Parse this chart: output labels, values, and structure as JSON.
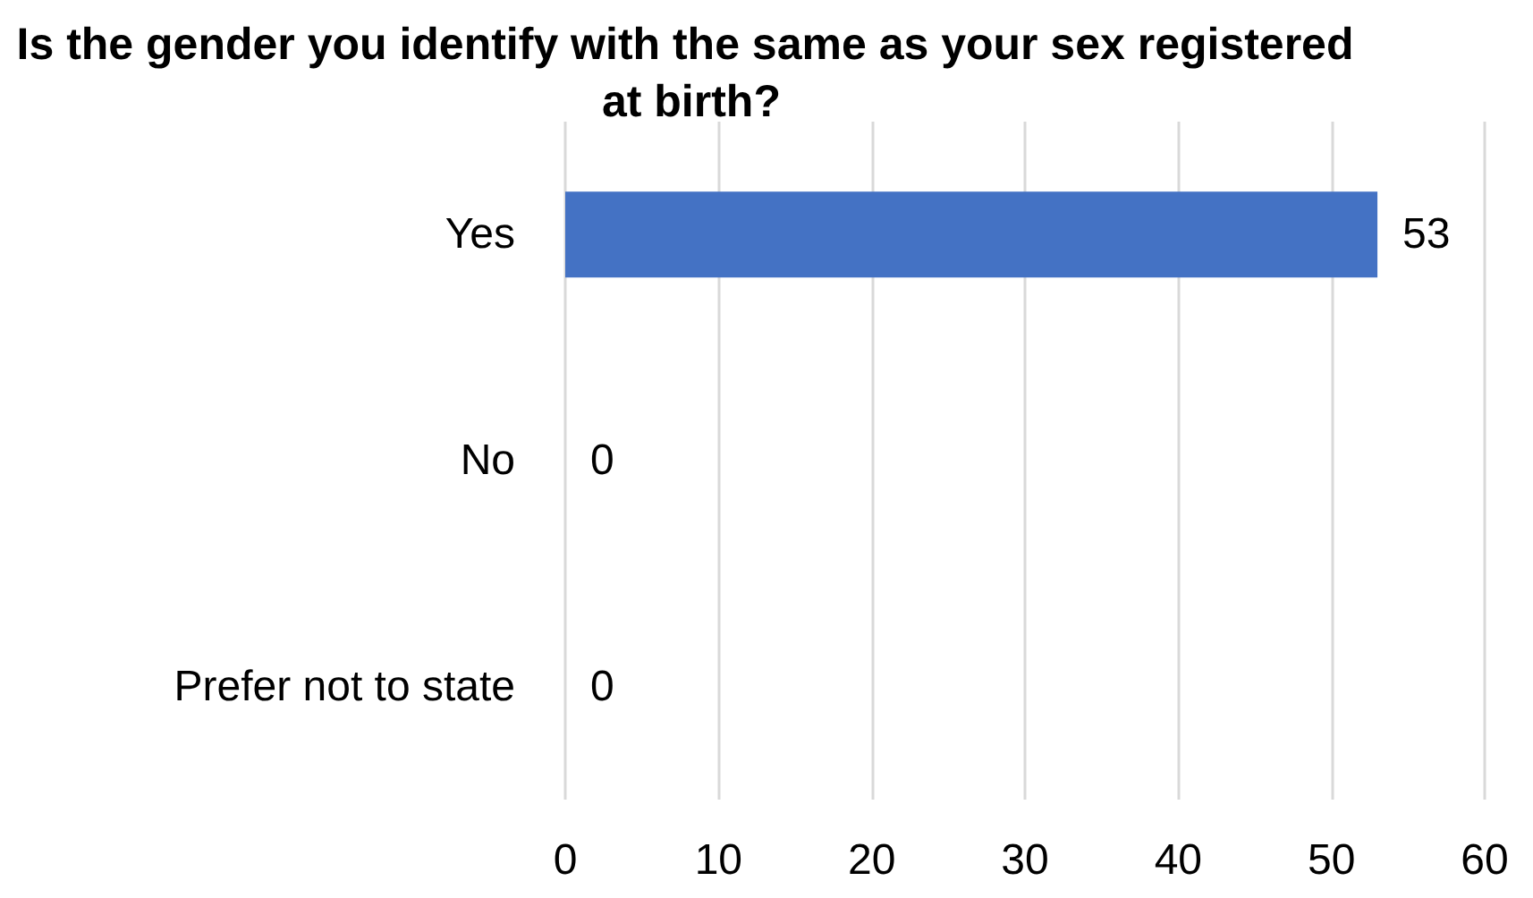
{
  "chart_data": {
    "type": "bar",
    "orientation": "horizontal",
    "title": "Is the gender you identify with the same as your sex registered at birth?",
    "categories": [
      "Yes",
      "No",
      "Prefer not to state"
    ],
    "values": [
      53,
      0,
      0
    ],
    "color": "#4472c4",
    "xlim": [
      0,
      60
    ],
    "xticks": [
      0,
      10,
      20,
      30,
      40,
      50,
      60
    ],
    "grid": "x",
    "data_labels": true
  }
}
